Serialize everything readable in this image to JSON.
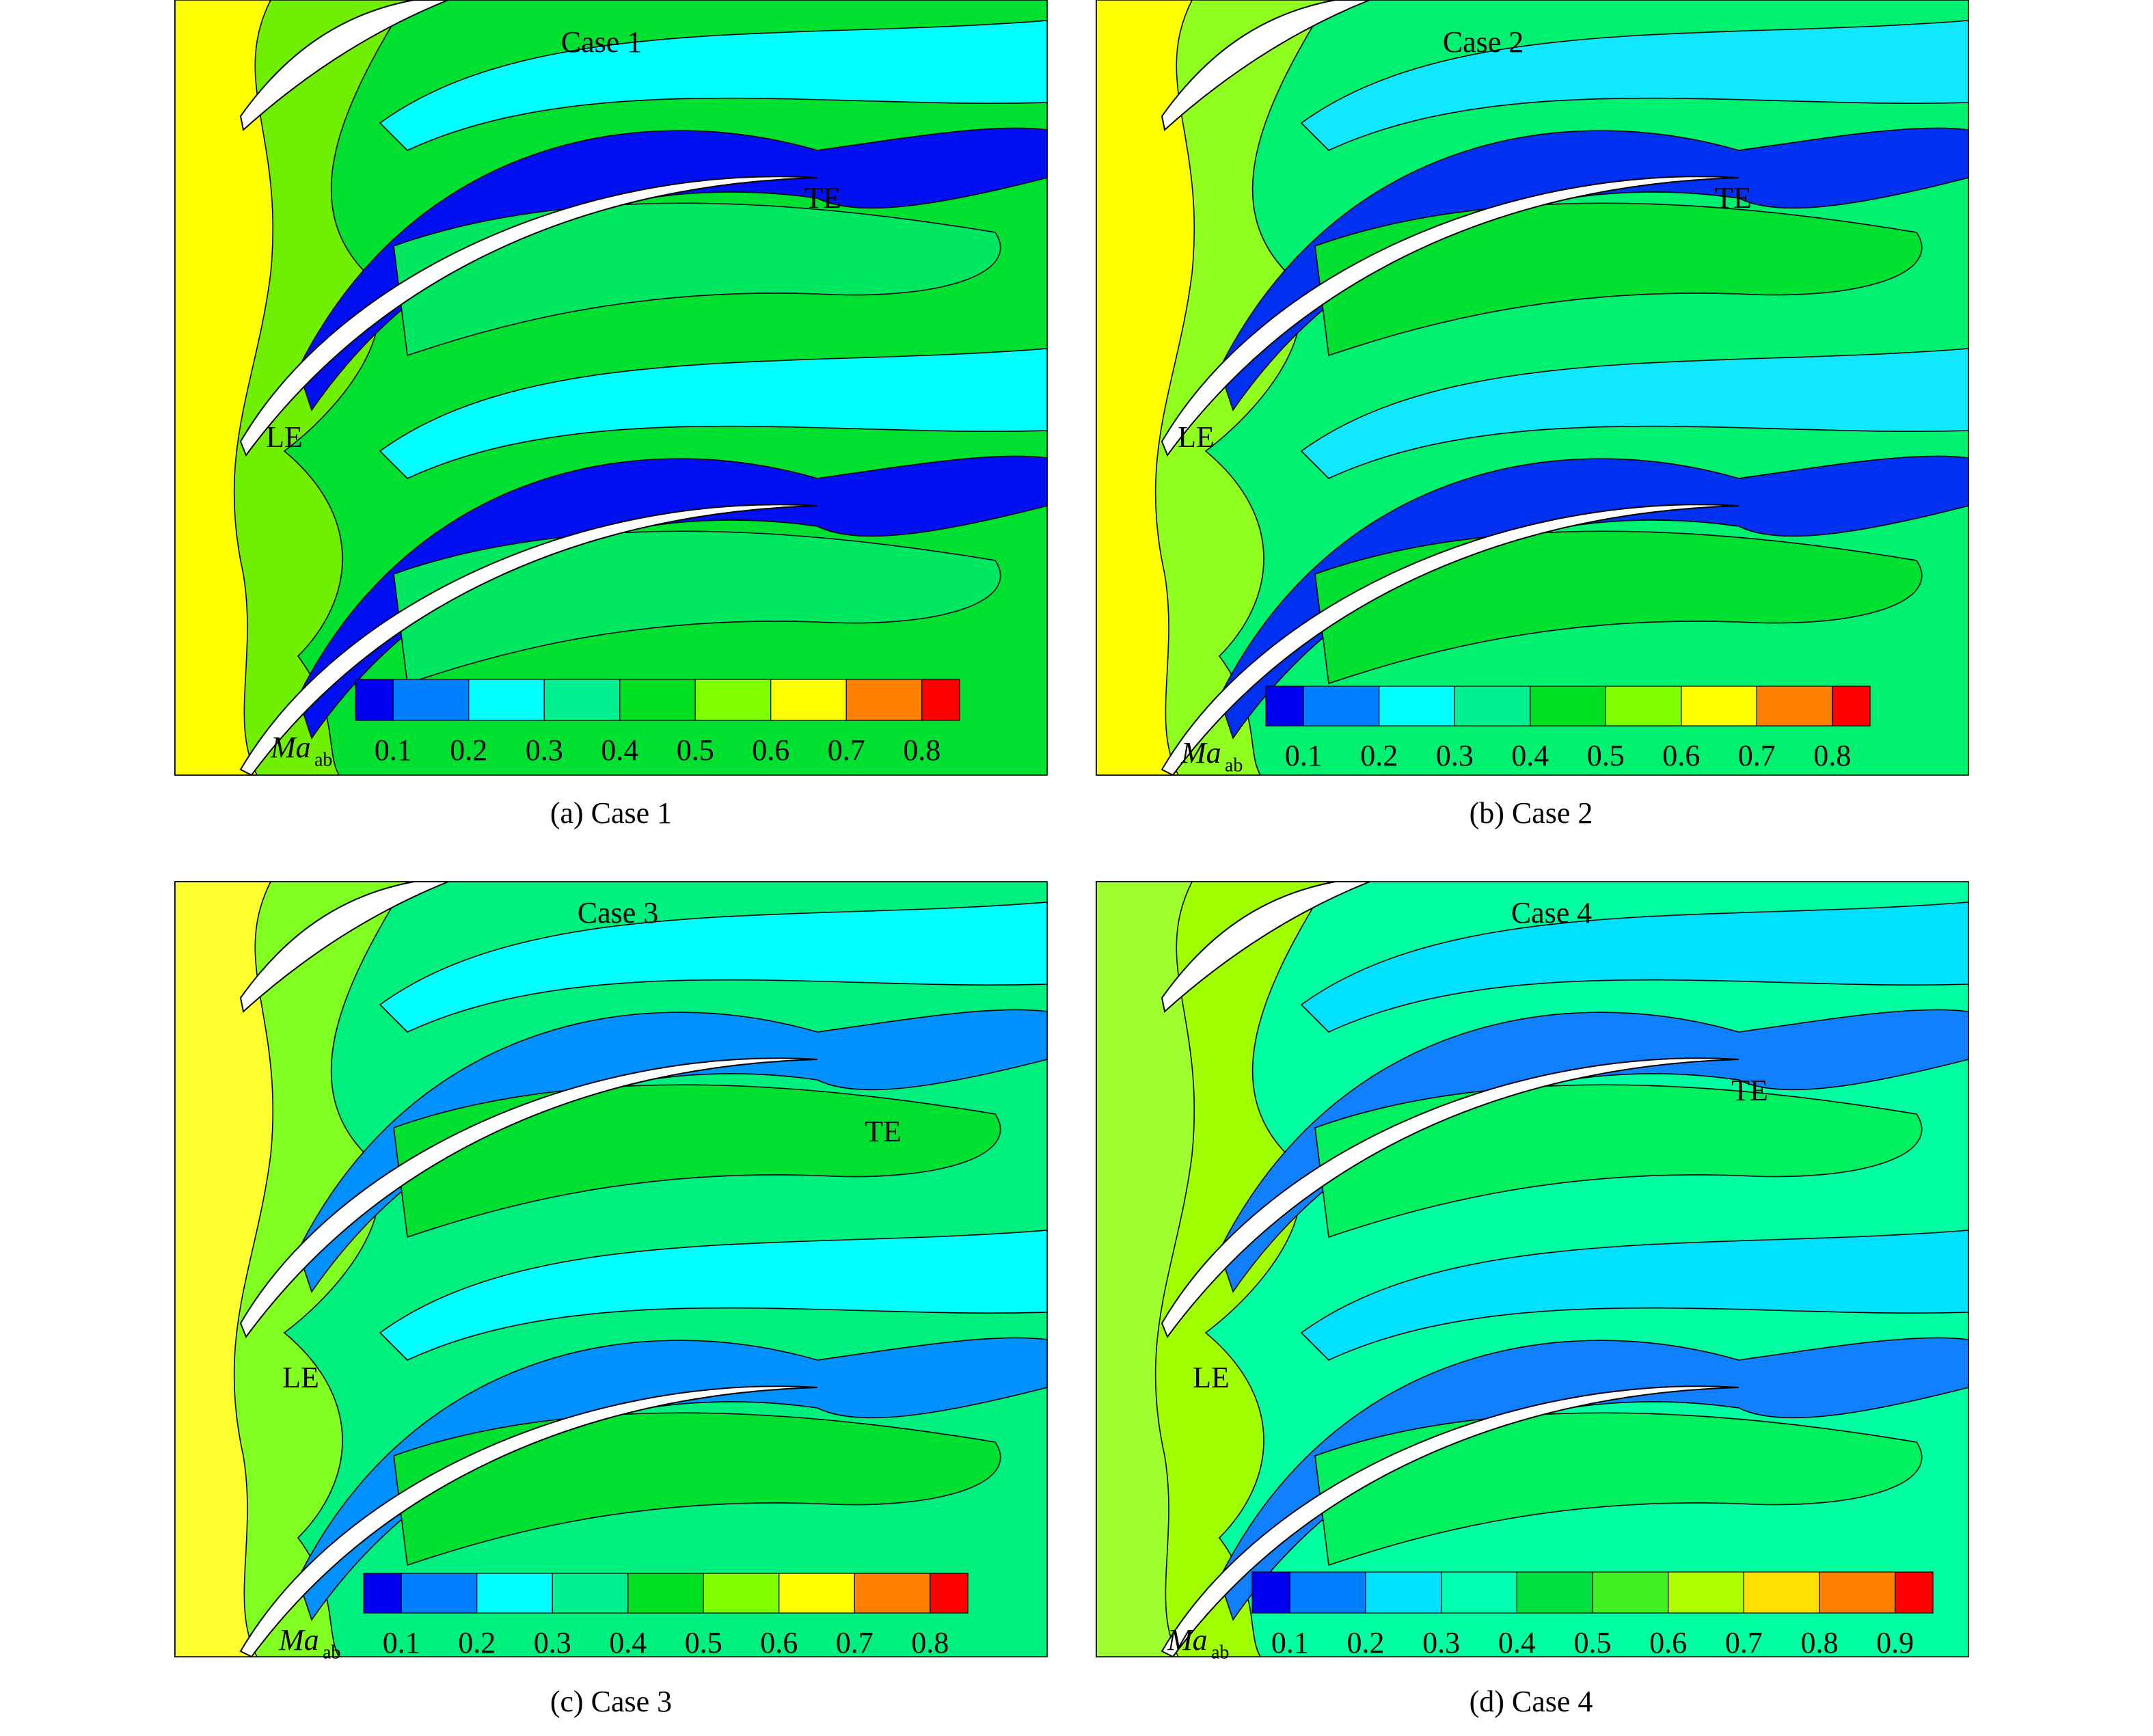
{
  "panels": [
    {
      "title": "Case 1",
      "caption": "(a) Case 1",
      "le": "LE",
      "te": "TE",
      "colorbar": {
        "symbol": "Ma",
        "subscript": "ab",
        "ticks": [
          0.1,
          0.2,
          0.3,
          0.4,
          0.5,
          0.6,
          0.7,
          0.8
        ],
        "colors": [
          "#0000f0",
          "#0080ff",
          "#00ffff",
          "#00f090",
          "#00e020",
          "#80ff00",
          "#ffff00",
          "#ff8000",
          "#ff0000"
        ]
      }
    },
    {
      "title": "Case 2",
      "caption": "(b) Case 2",
      "le": "LE",
      "te": "TE",
      "colorbar": {
        "symbol": "Ma",
        "subscript": "ab",
        "ticks": [
          0.1,
          0.2,
          0.3,
          0.4,
          0.5,
          0.6,
          0.7,
          0.8
        ],
        "colors": [
          "#0000f0",
          "#0080ff",
          "#00ffff",
          "#00f090",
          "#00e020",
          "#80ff00",
          "#ffff00",
          "#ff8000",
          "#ff0000"
        ]
      }
    },
    {
      "title": "Case 3",
      "caption": "(c) Case 3",
      "le": "LE",
      "te": "TE",
      "colorbar": {
        "symbol": "Ma",
        "subscript": "ab",
        "ticks": [
          0.1,
          0.2,
          0.3,
          0.4,
          0.5,
          0.6,
          0.7,
          0.8
        ],
        "colors": [
          "#0000f0",
          "#0080ff",
          "#00ffff",
          "#00f090",
          "#00e020",
          "#80ff00",
          "#ffff00",
          "#ff8000",
          "#ff0000"
        ]
      }
    },
    {
      "title": "Case 4",
      "caption": "(d) Case 4",
      "le": "LE",
      "te": "TE",
      "colorbar": {
        "symbol": "Ma",
        "subscript": "ab",
        "ticks": [
          0.1,
          0.2,
          0.3,
          0.4,
          0.5,
          0.6,
          0.7,
          0.8,
          0.9
        ],
        "colors": [
          "#0000f0",
          "#0080ff",
          "#00e0ff",
          "#00ffb0",
          "#00e040",
          "#40f020",
          "#b0ff00",
          "#ffe000",
          "#ff8000",
          "#ff0000"
        ]
      }
    }
  ]
}
